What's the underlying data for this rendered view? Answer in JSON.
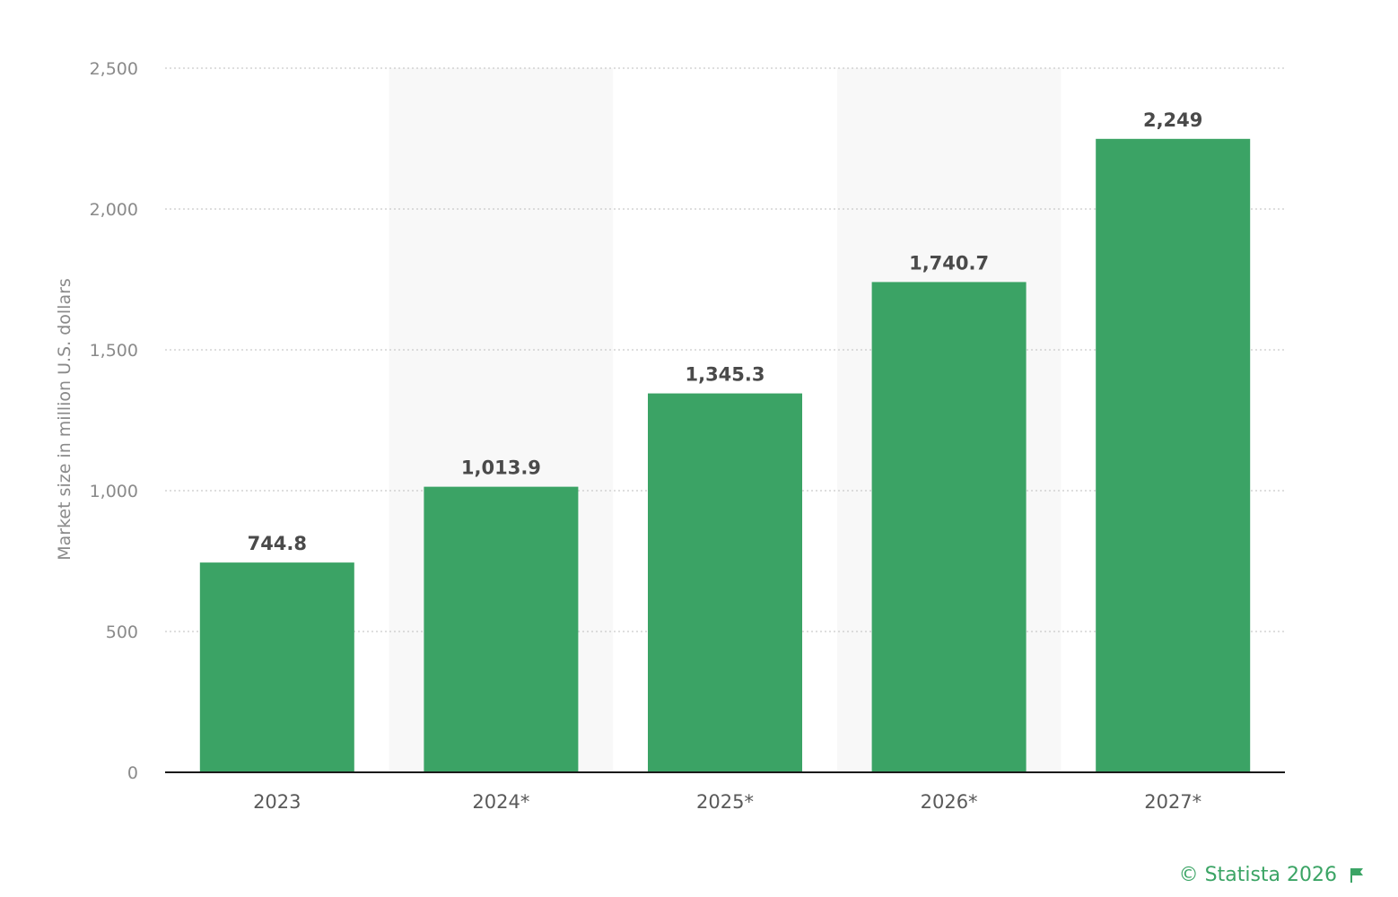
{
  "chart_data": {
    "type": "bar",
    "categories": [
      "2023",
      "2024*",
      "2025*",
      "2026*",
      "2027*"
    ],
    "values": [
      744.8,
      1013.9,
      1345.3,
      1740.7,
      2249
    ],
    "value_labels": [
      "744.8",
      "1,013.9",
      "1,345.3",
      "1,740.7",
      "2,249"
    ],
    "ylabel": "Market size in million U.S. dollars",
    "xlabel": "",
    "ylim": [
      0,
      2500
    ],
    "yticks": [
      0,
      500,
      1000,
      1500,
      2000,
      2500
    ],
    "ytick_labels": [
      "0",
      "500",
      "1,000",
      "1,500",
      "2,000",
      "2,500"
    ],
    "grid": true,
    "bar_color": "#3ba365",
    "alternating_band_color": "#f8f8f8"
  },
  "credit": {
    "text": "© Statista 2026",
    "icon": "flag-icon",
    "color": "#3ba465"
  }
}
